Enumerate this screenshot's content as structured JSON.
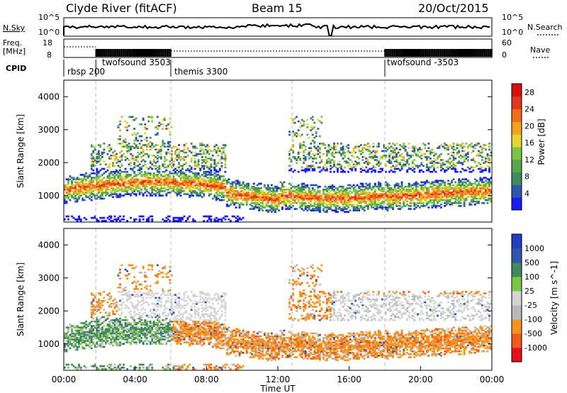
{
  "header": {
    "station": "Clyde River (fitACF)",
    "beam": "Beam 15",
    "date": "20/Oct/2015"
  },
  "top_panels": {
    "nsky_label": "N.Sky",
    "nsearch_label": "N.Search",
    "nsky_ticks": [
      "10^5",
      "10^0"
    ],
    "nsearch_ticks": [
      "10^5",
      "10^0"
    ],
    "freq_label_1": "Freq.",
    "freq_label_2": "[MHz]",
    "freq_ticks": [
      "18",
      "8"
    ],
    "nave_label": "Nave",
    "nave_ticks": [
      "60",
      "0"
    ],
    "cpid_label": "CPID"
  },
  "cpid_segments": [
    {
      "start_h": 0.0,
      "label": "rbsp 200"
    },
    {
      "start_h": 1.8,
      "label": "twofsound 3503"
    },
    {
      "start_h": 6.0,
      "label": "themis 3300"
    },
    {
      "start_h": 18.0,
      "label": "twofsound -3503"
    }
  ],
  "colors": {
    "power": [
      "#1a1aff",
      "#2f56a8",
      "#3f8a5a",
      "#56a64b",
      "#7cc644",
      "#e6d230",
      "#f5a21e",
      "#f26d1a",
      "#e3361b",
      "#d60f0f"
    ],
    "velocity": [
      "#e4101a",
      "#f05a1a",
      "#f5931e",
      "#b9b9b9",
      "#d4d4d4",
      "#7cc644",
      "#3f8a5a",
      "#2f56a8",
      "#1f3fc0"
    ],
    "ground_scatter": "#bdbdbd"
  },
  "chart_data": [
    {
      "type": "heatmap",
      "name": "power",
      "ylabel": "Slant Range [km]",
      "xlabel": "",
      "x_range_h": [
        0,
        24
      ],
      "ylim": [
        200,
        4500
      ],
      "y_ticks": [
        1000,
        2000,
        3000,
        4000
      ],
      "colorbar_label": "Power [dB]",
      "colorbar_ticks": [
        4,
        8,
        12,
        16,
        20,
        24,
        28
      ],
      "colorbar_range": [
        0,
        30
      ],
      "dashed_lines_h": [
        1.8,
        6.0,
        12.8,
        18.0
      ]
    },
    {
      "type": "heatmap",
      "name": "velocity",
      "ylabel": "Slant Range [km]",
      "xlabel": "Time UT",
      "x_range_h": [
        0,
        24
      ],
      "x_tick_labels": [
        "00:00",
        "04:00",
        "08:00",
        "12:00",
        "16:00",
        "20:00",
        "00:00"
      ],
      "ylim": [
        200,
        4500
      ],
      "y_ticks": [
        1000,
        2000,
        3000,
        4000
      ],
      "colorbar_label": "Velocity [m s^-1]",
      "colorbar_ticks": [
        "1000",
        "500",
        "100",
        "25",
        "-25",
        "-100",
        "-500",
        "-1000"
      ],
      "dashed_lines_h": [
        1.8,
        6.0,
        12.8,
        18.0
      ]
    }
  ]
}
